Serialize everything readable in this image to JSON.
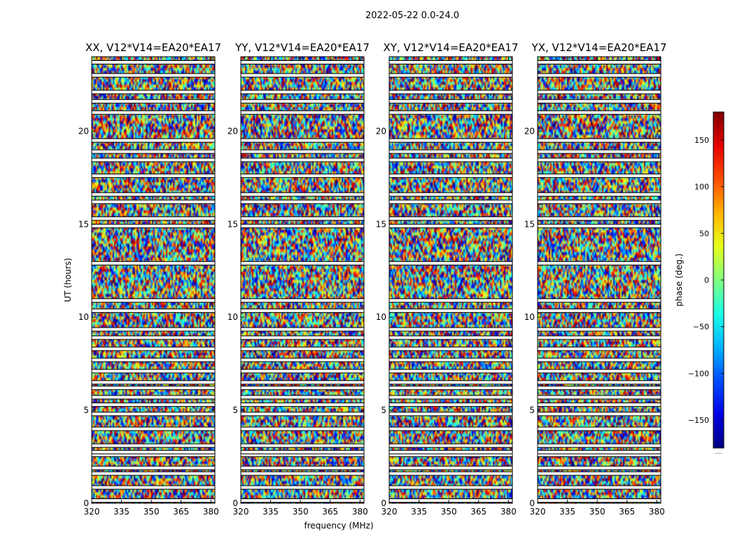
{
  "figure_title": "2022-05-22 0.0-24.0",
  "chart_data": [
    {
      "type": "heatmap",
      "title": "XX, V12*V14=EA20*EA17",
      "xlabel": "",
      "ylabel": "UT (hours)",
      "xlim": [
        320,
        382
      ],
      "ylim": [
        0,
        24
      ],
      "xticks": [
        320,
        335,
        350,
        365,
        380
      ],
      "yticks": [
        0,
        5,
        10,
        15,
        20
      ],
      "value": "phase (deg.)"
    },
    {
      "type": "heatmap",
      "title": "YY, V12*V14=EA20*EA17",
      "xlabel": "frequency (MHz)",
      "ylabel": "",
      "xlim": [
        320,
        382
      ],
      "ylim": [
        0,
        24
      ],
      "xticks": [
        320,
        335,
        350,
        365,
        380
      ],
      "yticks": [
        0,
        5,
        10,
        15,
        20
      ],
      "value": "phase (deg.)"
    },
    {
      "type": "heatmap",
      "title": "XY, V12*V14=EA20*EA17",
      "xlabel": "",
      "ylabel": "",
      "xlim": [
        320,
        382
      ],
      "ylim": [
        0,
        24
      ],
      "xticks": [
        320,
        335,
        350,
        365,
        380
      ],
      "yticks": [
        0,
        5,
        10,
        15,
        20
      ],
      "value": "phase (deg.)"
    },
    {
      "type": "heatmap",
      "title": "YX, V12*V14=EA20*EA17",
      "xlabel": "",
      "ylabel": "",
      "xlim": [
        320,
        382
      ],
      "ylim": [
        0,
        24
      ],
      "xticks": [
        320,
        335,
        350,
        365,
        380
      ],
      "yticks": [
        0,
        5,
        10,
        15,
        20
      ],
      "value": "phase (deg.)"
    }
  ],
  "colorbar": {
    "label": "phase (deg.)",
    "range": [
      -180,
      180
    ],
    "ticks": [
      -150,
      -100,
      -50,
      0,
      50,
      100,
      150
    ],
    "colormap": "jet",
    "footer": "....."
  },
  "flagged_rows_hours": [
    0.15,
    0.85,
    1.6,
    1.9,
    2.6,
    2.75,
    3.1,
    4.0,
    4.8,
    5.3,
    5.7,
    6.2,
    6.5,
    7.1,
    7.7,
    8.3,
    8.9,
    9.35,
    10.35,
    10.9,
    12.9,
    14.9,
    15.3,
    16.2,
    16.6,
    17.6,
    18.45,
    18.9,
    19.5,
    21.0,
    21.6,
    22.1,
    23.0,
    23.7
  ],
  "colors": {
    "background": "#ffffff",
    "axes": "#000000"
  }
}
